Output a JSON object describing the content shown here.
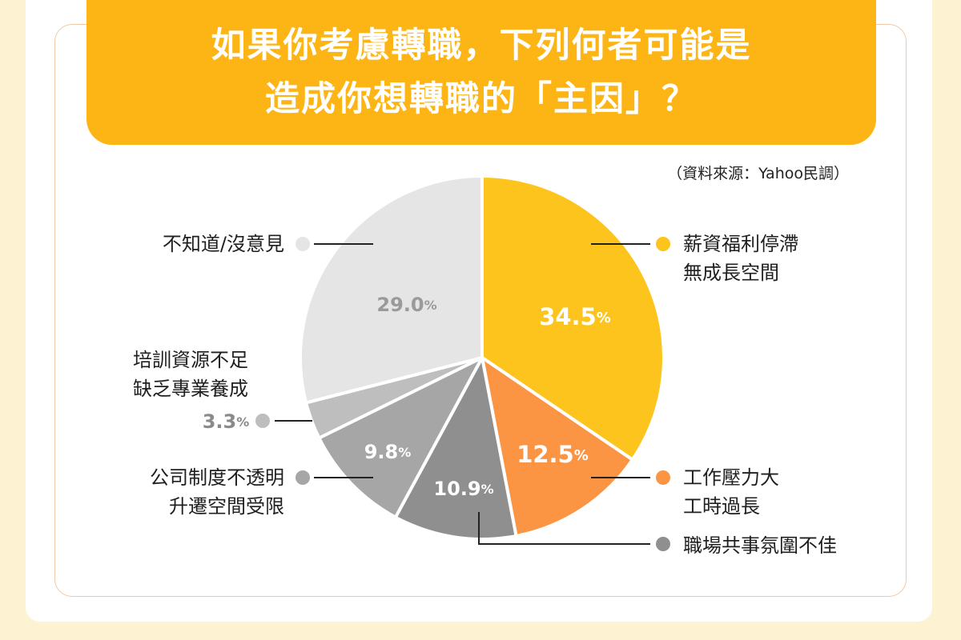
{
  "title": {
    "line1": "如果你考慮轉職，下列何者可能是",
    "line2": "造成你想轉職的「主因」？"
  },
  "source": "（資料來源：Yahoo民調）",
  "chart_data": {
    "type": "pie",
    "title": "如果你考慮轉職，下列何者可能是造成你想轉職的「主因」？",
    "unit": "%",
    "slices": [
      {
        "label_lines": [
          "薪資福利停滯",
          "無成長空間"
        ],
        "value": 34.5,
        "value_text": "34.5",
        "color": "#fcc41d",
        "value_color": "#ffffff"
      },
      {
        "label_lines": [
          "工作壓力大",
          "工時過長"
        ],
        "value": 12.5,
        "value_text": "12.5",
        "color": "#fb9443",
        "value_color": "#ffffff"
      },
      {
        "label_lines": [
          "職場共事氛圍不佳"
        ],
        "value": 10.9,
        "value_text": "10.9",
        "color": "#8f8f8f",
        "value_color": "#ffffff"
      },
      {
        "label_lines": [
          "公司制度不透明",
          "升遷空間受限"
        ],
        "value": 9.8,
        "value_text": "9.8",
        "color": "#a6a6a6",
        "value_color": "#ffffff"
      },
      {
        "label_lines": [
          "培訓資源不足",
          "缺乏專業養成"
        ],
        "value": 3.3,
        "value_text": "3.3",
        "color": "#bebebe",
        "value_color": "#8a8a8a"
      },
      {
        "label_lines": [
          "不知道/沒意見"
        ],
        "value": 29.0,
        "value_text": "29.0",
        "color": "#e5e5e5",
        "value_color": "#9a9a9a"
      }
    ]
  }
}
